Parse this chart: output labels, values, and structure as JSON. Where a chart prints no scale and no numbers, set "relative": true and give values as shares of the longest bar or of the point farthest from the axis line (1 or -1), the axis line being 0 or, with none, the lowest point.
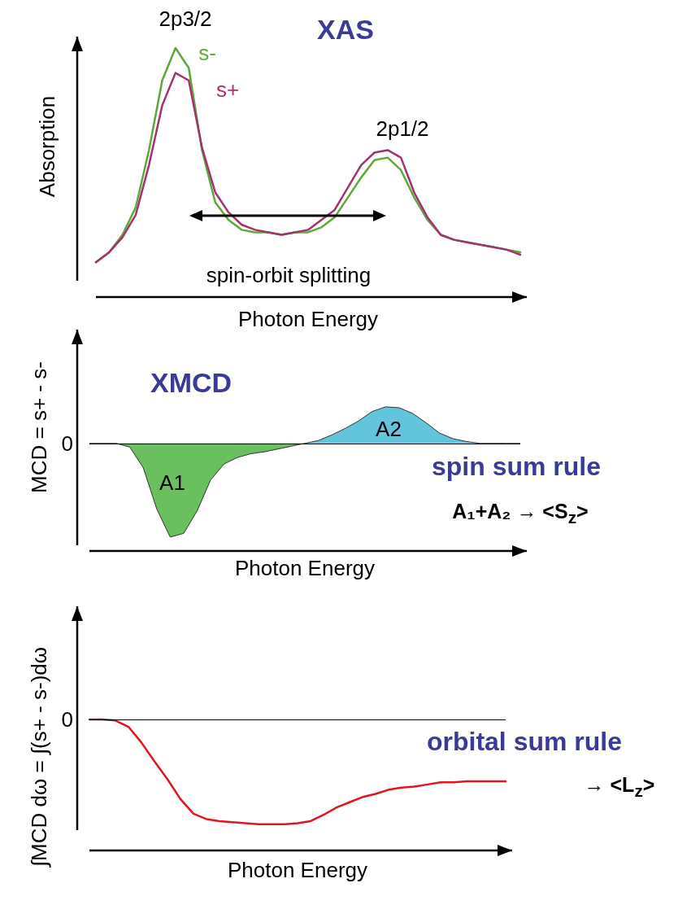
{
  "chart_data": [
    {
      "type": "line",
      "title": "XAS",
      "ylabel": "Absorption",
      "xlabel": "Photon Energy",
      "relative": true,
      "marker": "none",
      "line_style": "solid",
      "categories": [
        null,
        null,
        null,
        null,
        null,
        null,
        null,
        null,
        null,
        null,
        null,
        null,
        null,
        null,
        null,
        null,
        null,
        null,
        null,
        null,
        null,
        null,
        null,
        null,
        null,
        null,
        null,
        null,
        null,
        null,
        null,
        null,
        null
      ],
      "series": [
        {
          "name": "s-",
          "color": "#5ea83a",
          "values": [
            0.14,
            0.18,
            0.25,
            0.36,
            0.59,
            0.87,
            1,
            0.92,
            0.59,
            0.38,
            0.31,
            0.27,
            0.26,
            0.26,
            0.25,
            0.26,
            0.26,
            0.28,
            0.32,
            0.4,
            0.48,
            0.55,
            0.56,
            0.51,
            0.4,
            0.31,
            0.25,
            0.23,
            0.22,
            0.21,
            0.2,
            0.19,
            0.18
          ]
        },
        {
          "name": "s+",
          "color": "#a3336f",
          "values": [
            0.14,
            0.18,
            0.24,
            0.33,
            0.53,
            0.77,
            0.9,
            0.87,
            0.6,
            0.42,
            0.34,
            0.29,
            0.27,
            0.26,
            0.25,
            0.26,
            0.27,
            0.31,
            0.35,
            0.44,
            0.53,
            0.58,
            0.59,
            0.56,
            0.42,
            0.32,
            0.25,
            0.23,
            0.22,
            0.21,
            0.2,
            0.19,
            0.17
          ]
        }
      ],
      "annotations": [
        "2p3/2",
        "2p1/2",
        "spin-orbit splitting"
      ]
    },
    {
      "type": "area",
      "title": "XMCD",
      "ylabel": "MCD = s+ - s-",
      "xlabel": "Photon Energy",
      "relative": true,
      "marker": "none",
      "categories": [
        null,
        null,
        null,
        null,
        null,
        null,
        null,
        null,
        null,
        null,
        null,
        null,
        null,
        null,
        null,
        null,
        null,
        null,
        null,
        null,
        null,
        null,
        null,
        null,
        null,
        null,
        null,
        null,
        null,
        null,
        null,
        null,
        null
      ],
      "series": [
        {
          "name": "A1",
          "color": "#6abf5e",
          "values": [
            0,
            0,
            0,
            -0.04,
            -0.26,
            -0.7,
            -1,
            -0.96,
            -0.72,
            -0.39,
            -0.22,
            -0.15,
            -0.11,
            -0.09,
            -0.06,
            -0.03,
            0,
            null,
            null,
            null,
            null,
            null,
            null,
            null,
            null,
            null,
            null,
            null,
            null,
            null,
            null,
            null,
            null
          ]
        },
        {
          "name": "A2",
          "color": "#63c5dc",
          "values": [
            null,
            null,
            null,
            null,
            null,
            null,
            null,
            null,
            null,
            null,
            null,
            null,
            null,
            null,
            null,
            null,
            0,
            0.03,
            0.09,
            0.16,
            0.24,
            0.34,
            0.39,
            0.38,
            0.32,
            0.22,
            0.11,
            0.05,
            0.02,
            0,
            0,
            0,
            0
          ]
        }
      ],
      "ref_lines": [
        {
          "axis": "y",
          "value": 0,
          "label": "0"
        }
      ],
      "annotations": [
        "spin sum rule",
        "A₁+A₂  → <S$_{z}$>"
      ]
    },
    {
      "type": "line",
      "ylabel": "∫MCD dω = ∫(s+ - s-)dω",
      "xlabel": "Photon Energy",
      "relative": true,
      "marker": "none",
      "line_style": "solid",
      "categories": [
        null,
        null,
        null,
        null,
        null,
        null,
        null,
        null,
        null,
        null,
        null,
        null,
        null,
        null,
        null,
        null,
        null,
        null,
        null,
        null,
        null,
        null,
        null,
        null,
        null,
        null,
        null,
        null,
        null,
        null,
        null,
        null,
        null
      ],
      "series": [
        {
          "color": "#e3141b",
          "values": [
            0,
            0,
            -0.01,
            -0.07,
            -0.22,
            -0.4,
            -0.57,
            -0.76,
            -0.9,
            -0.95,
            -0.97,
            -0.98,
            -0.99,
            -1,
            -1,
            -1,
            -0.99,
            -0.97,
            -0.91,
            -0.84,
            -0.79,
            -0.74,
            -0.71,
            -0.67,
            -0.65,
            -0.64,
            -0.62,
            -0.6,
            -0.6,
            -0.59,
            -0.59,
            -0.59,
            -0.59
          ]
        }
      ],
      "ref_lines": [
        {
          "axis": "y",
          "value": 0,
          "label": "0"
        }
      ],
      "annotations": [
        "orbital sum rule",
        "→ <L$_{z}$>"
      ]
    }
  ]
}
